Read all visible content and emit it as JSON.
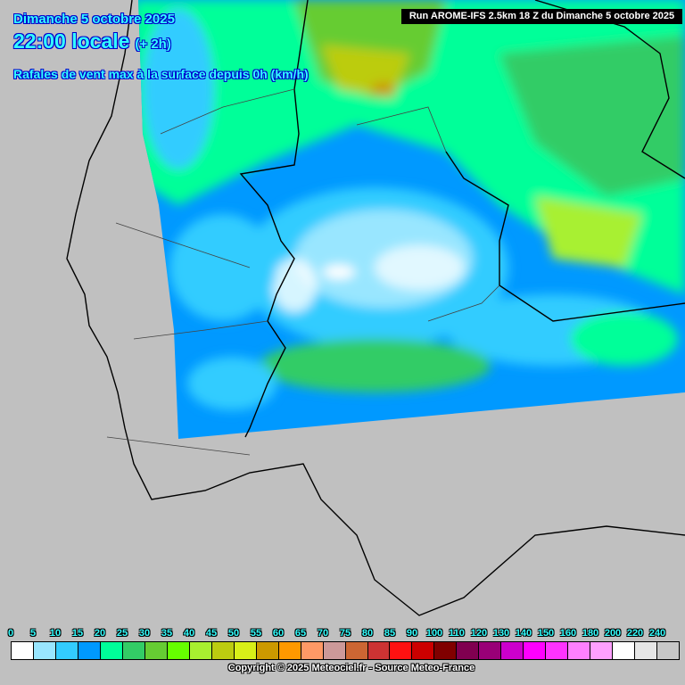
{
  "header": {
    "date": "Dimanche 5 octobre 2025",
    "time": "22:00 locale",
    "offset": "(+ 2h)",
    "parameter": "Rafales de vent max à la surface depuis 0h (km/h)",
    "run": "Run AROME-IFS 2.5km 18 Z du Dimanche 5 octobre 2025"
  },
  "legend": {
    "labels": [
      "0",
      "5",
      "10",
      "15",
      "20",
      "25",
      "30",
      "35",
      "40",
      "45",
      "50",
      "55",
      "60",
      "65",
      "70",
      "75",
      "80",
      "85",
      "90",
      "100",
      "110",
      "120",
      "130",
      "140",
      "150",
      "160",
      "180",
      "200",
      "220",
      "240"
    ],
    "colors": [
      "#ffffff",
      "#99e6ff",
      "#33ccff",
      "#0099ff",
      "#00ff99",
      "#33cc66",
      "#66cc33",
      "#66ff00",
      "#a8f030",
      "#bccc10",
      "#d8f018",
      "#cc9900",
      "#ff9900",
      "#ff9966",
      "#cc9999",
      "#cc6633",
      "#cc3333",
      "#ff1111",
      "#cc0000",
      "#800000",
      "#800050",
      "#990077",
      "#cc00cc",
      "#ff00ff",
      "#ff33ff",
      "#ff80ff",
      "#ffa0ff",
      "#ffffff",
      "#e6e6e6",
      "#c8c8c8"
    ]
  },
  "footer": {
    "copyright": "Copyright © 2025 Meteociel.fr - Source Meteo-France"
  }
}
